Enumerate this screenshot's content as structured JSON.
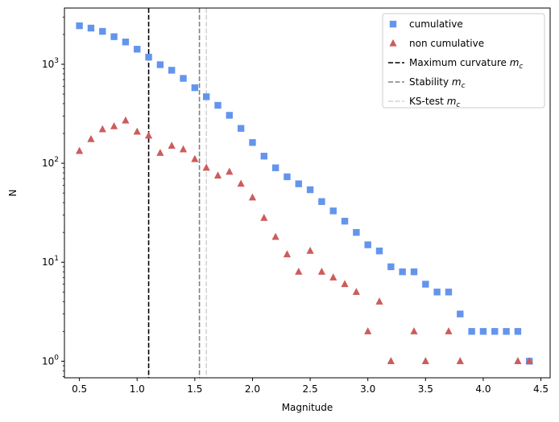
{
  "chart_data": {
    "type": "scatter",
    "xlabel": "Magnitude",
    "ylabel": "N",
    "xlim": [
      0.37,
      4.58
    ],
    "ylim": [
      0.68,
      3700
    ],
    "yscale": "log",
    "grid": false,
    "legend_placement": "top-right",
    "x_ticks": [
      0.5,
      1.0,
      1.5,
      2.0,
      2.5,
      3.0,
      3.5,
      4.0,
      4.5
    ],
    "x_tick_labels": [
      "0.5",
      "1.0",
      "1.5",
      "2.0",
      "2.5",
      "3.0",
      "3.5",
      "4.0",
      "4.5"
    ],
    "y_ticks": [
      {
        "value": 1,
        "base": "10",
        "exp": "0"
      },
      {
        "value": 10,
        "base": "10",
        "exp": "1"
      },
      {
        "value": 100,
        "base": "10",
        "exp": "2"
      },
      {
        "value": 1000,
        "base": "10",
        "exp": "3"
      }
    ],
    "series": [
      {
        "name": "cumulative",
        "marker": "square",
        "color": "#6495ed",
        "points": [
          [
            0.5,
            2450
          ],
          [
            0.6,
            2320
          ],
          [
            0.7,
            2150
          ],
          [
            0.8,
            1900
          ],
          [
            0.9,
            1680
          ],
          [
            1.0,
            1420
          ],
          [
            1.1,
            1180
          ],
          [
            1.2,
            990
          ],
          [
            1.3,
            870
          ],
          [
            1.4,
            720
          ],
          [
            1.5,
            580
          ],
          [
            1.6,
            470
          ],
          [
            1.7,
            385
          ],
          [
            1.8,
            305
          ],
          [
            1.9,
            225
          ],
          [
            2.0,
            162
          ],
          [
            2.1,
            118
          ],
          [
            2.2,
            90
          ],
          [
            2.3,
            73
          ],
          [
            2.4,
            62
          ],
          [
            2.5,
            54
          ],
          [
            2.6,
            41
          ],
          [
            2.7,
            33
          ],
          [
            2.8,
            26
          ],
          [
            2.9,
            20
          ],
          [
            3.0,
            15
          ],
          [
            3.1,
            13
          ],
          [
            3.2,
            9
          ],
          [
            3.3,
            8
          ],
          [
            3.4,
            8
          ],
          [
            3.5,
            6
          ],
          [
            3.6,
            5
          ],
          [
            3.7,
            5
          ],
          [
            3.8,
            3
          ],
          [
            3.9,
            2
          ],
          [
            4.0,
            2
          ],
          [
            4.1,
            2
          ],
          [
            4.2,
            2
          ],
          [
            4.3,
            2
          ],
          [
            4.4,
            1
          ]
        ]
      },
      {
        "name": "non cumulative",
        "marker": "triangle",
        "color": "#cd5c5c",
        "points": [
          [
            0.5,
            133
          ],
          [
            0.6,
            175
          ],
          [
            0.7,
            220
          ],
          [
            0.8,
            236
          ],
          [
            0.9,
            270
          ],
          [
            1.0,
            208
          ],
          [
            1.1,
            190
          ],
          [
            1.2,
            127
          ],
          [
            1.3,
            150
          ],
          [
            1.4,
            138
          ],
          [
            1.5,
            110
          ],
          [
            1.6,
            90
          ],
          [
            1.7,
            75
          ],
          [
            1.8,
            82
          ],
          [
            1.9,
            62
          ],
          [
            2.0,
            45
          ],
          [
            2.1,
            28
          ],
          [
            2.2,
            18
          ],
          [
            2.3,
            12
          ],
          [
            2.4,
            8
          ],
          [
            2.5,
            13
          ],
          [
            2.6,
            8
          ],
          [
            2.7,
            7
          ],
          [
            2.8,
            6
          ],
          [
            2.9,
            5
          ],
          [
            3.0,
            2
          ],
          [
            3.1,
            4
          ],
          [
            3.2,
            1
          ],
          [
            3.4,
            2
          ],
          [
            3.5,
            1
          ],
          [
            3.7,
            2
          ],
          [
            3.8,
            1
          ],
          [
            4.3,
            1
          ],
          [
            4.4,
            1
          ]
        ]
      }
    ],
    "vlines": [
      {
        "name": "Maximum curvature",
        "label_base": "Maximum curvature ",
        "x": 1.1,
        "color": "#000000"
      },
      {
        "name": "Stability",
        "label_base": "Stability ",
        "x": 1.54,
        "color": "#808080"
      },
      {
        "name": "KS-test",
        "label_base": "KS-test ",
        "x": 1.6,
        "color": "#d3d3d3"
      }
    ],
    "mc_symbol": {
      "base": "m",
      "sub": "c"
    }
  }
}
